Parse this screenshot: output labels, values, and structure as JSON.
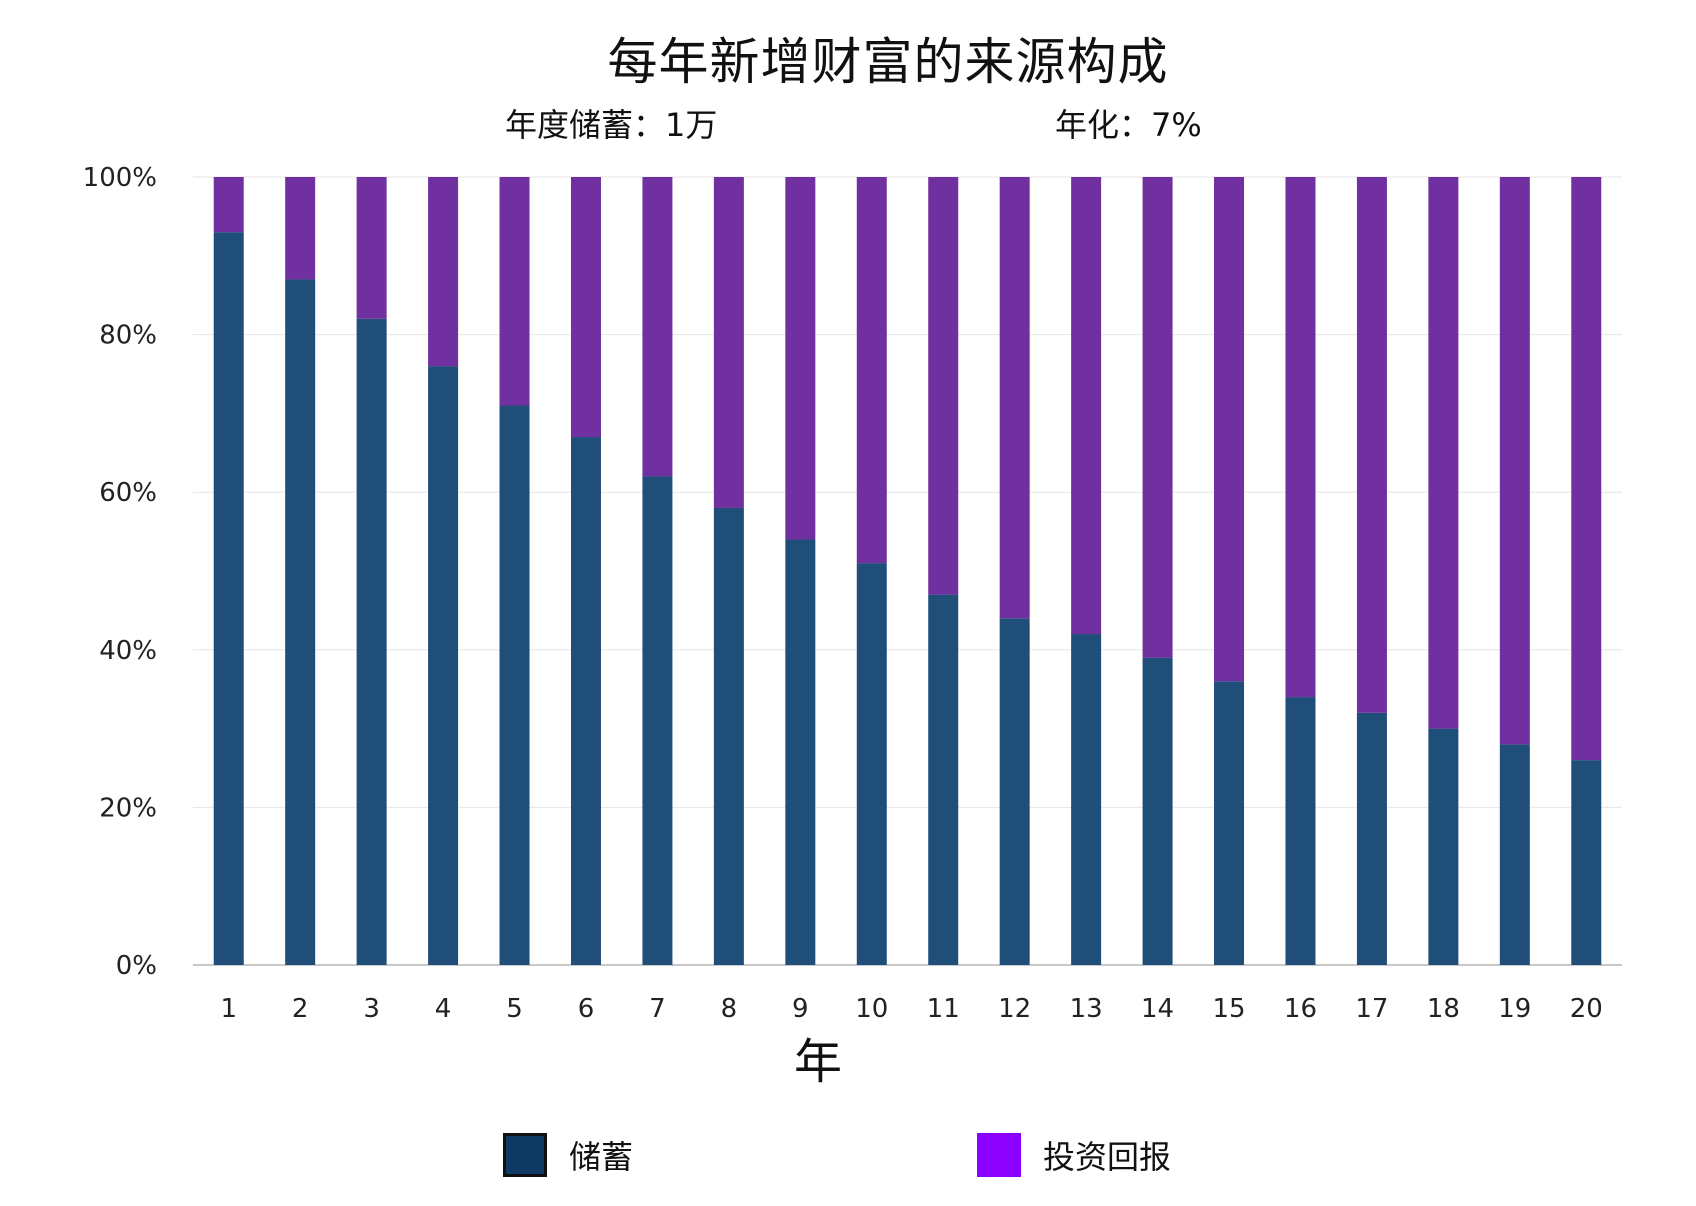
{
  "chart_data": {
    "type": "bar",
    "stacked": true,
    "title": "每年新增财富的来源构成",
    "subtitles": {
      "savings": "年度储蓄：1万",
      "rate": "年化：7%"
    },
    "xlabel": "年",
    "ylabel": "",
    "ylim": [
      0,
      100
    ],
    "yticks": [
      "0%",
      "20%",
      "40%",
      "60%",
      "80%",
      "100%"
    ],
    "categories": [
      "1",
      "2",
      "3",
      "4",
      "5",
      "6",
      "7",
      "8",
      "9",
      "10",
      "11",
      "12",
      "13",
      "14",
      "15",
      "16",
      "17",
      "18",
      "19",
      "20"
    ],
    "series": [
      {
        "name": "储蓄",
        "color": "#1f4e79",
        "values": [
          93,
          87,
          82,
          76,
          71,
          67,
          62,
          58,
          54,
          51,
          47,
          44,
          42,
          39,
          36,
          34,
          32,
          30,
          28,
          26
        ]
      },
      {
        "name": "投资回报",
        "color": "#7030a0",
        "values": [
          7,
          13,
          18,
          24,
          29,
          33,
          38,
          42,
          46,
          49,
          53,
          56,
          58,
          61,
          64,
          66,
          68,
          70,
          72,
          74
        ]
      }
    ],
    "grid": true,
    "legend_position": "bottom"
  },
  "legend": {
    "items": [
      {
        "label": "储蓄",
        "swatch_color": "#0f3a63",
        "swatch_border": "#111111"
      },
      {
        "label": "投资回报",
        "swatch_color": "#8b00ff"
      }
    ]
  }
}
